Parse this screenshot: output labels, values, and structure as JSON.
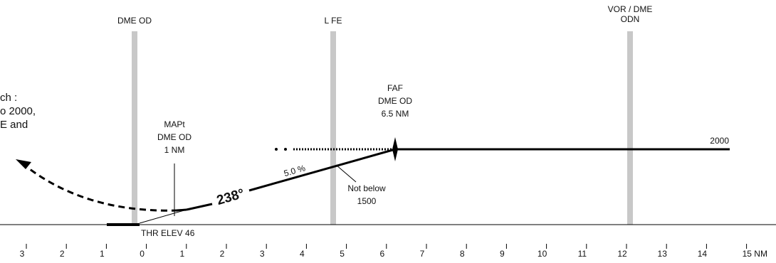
{
  "stations": [
    {
      "label": [
        "DME OD"
      ]
    },
    {
      "label": [
        "L FE"
      ]
    },
    {
      "label": [
        "VOR / DME",
        "ODN"
      ]
    }
  ],
  "missed_approach_note": [
    "ch :",
    "o 2000,",
    "E and"
  ],
  "mapt": [
    "MAPt",
    "DME OD",
    "1 NM"
  ],
  "faf": [
    "FAF",
    "DME OD",
    "6.5 NM"
  ],
  "altitude": "2000",
  "course": "238°",
  "gradient": "5.0 %",
  "minimum": [
    "Not below",
    "1500"
  ],
  "threshold": "THR ELEV 46",
  "axis_labels": [
    "3",
    "2",
    "1",
    "0",
    "1",
    "2",
    "3",
    "4",
    "5",
    "6",
    "7",
    "8",
    "9",
    "10",
    "11",
    "12",
    "13",
    "14",
    "15 NM"
  ]
}
